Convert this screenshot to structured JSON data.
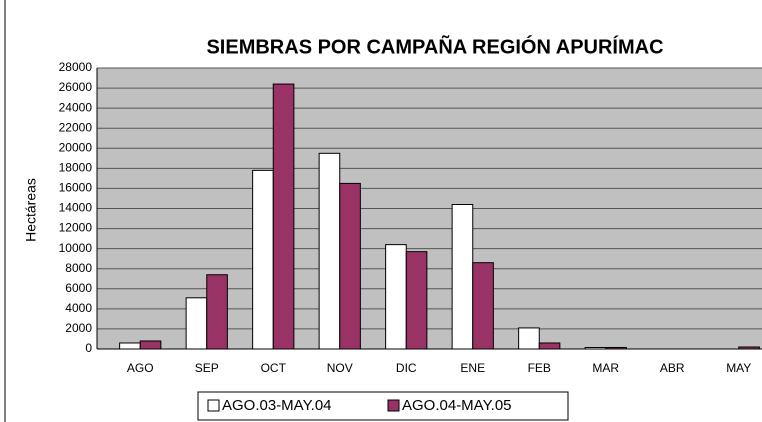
{
  "chart_data": {
    "type": "bar",
    "title": "SIEMBRAS POR CAMPAÑA REGIÓN APURÍMAC",
    "ylabel": "Hectáreas",
    "categories": [
      "AGO",
      "SEP",
      "OCT",
      "NOV",
      "DIC",
      "ENE",
      "FEB",
      "MAR",
      "ABR",
      "MAY"
    ],
    "series": [
      {
        "name": "AGO.03-MAY.04",
        "color": "#ffffff",
        "values": [
          600,
          5100,
          17800,
          19500,
          10400,
          14400,
          2100,
          150,
          0,
          0
        ]
      },
      {
        "name": "AGO.04-MAY.05",
        "color": "#993366",
        "values": [
          800,
          7400,
          26400,
          16500,
          9700,
          8600,
          600,
          150,
          0,
          200
        ]
      }
    ],
    "ylim": [
      0,
      28000
    ],
    "yticks": [
      0,
      2000,
      4000,
      6000,
      8000,
      10000,
      12000,
      14000,
      16000,
      18000,
      20000,
      22000,
      24000,
      26000,
      28000
    ],
    "grid": true,
    "legend": "bottom"
  }
}
